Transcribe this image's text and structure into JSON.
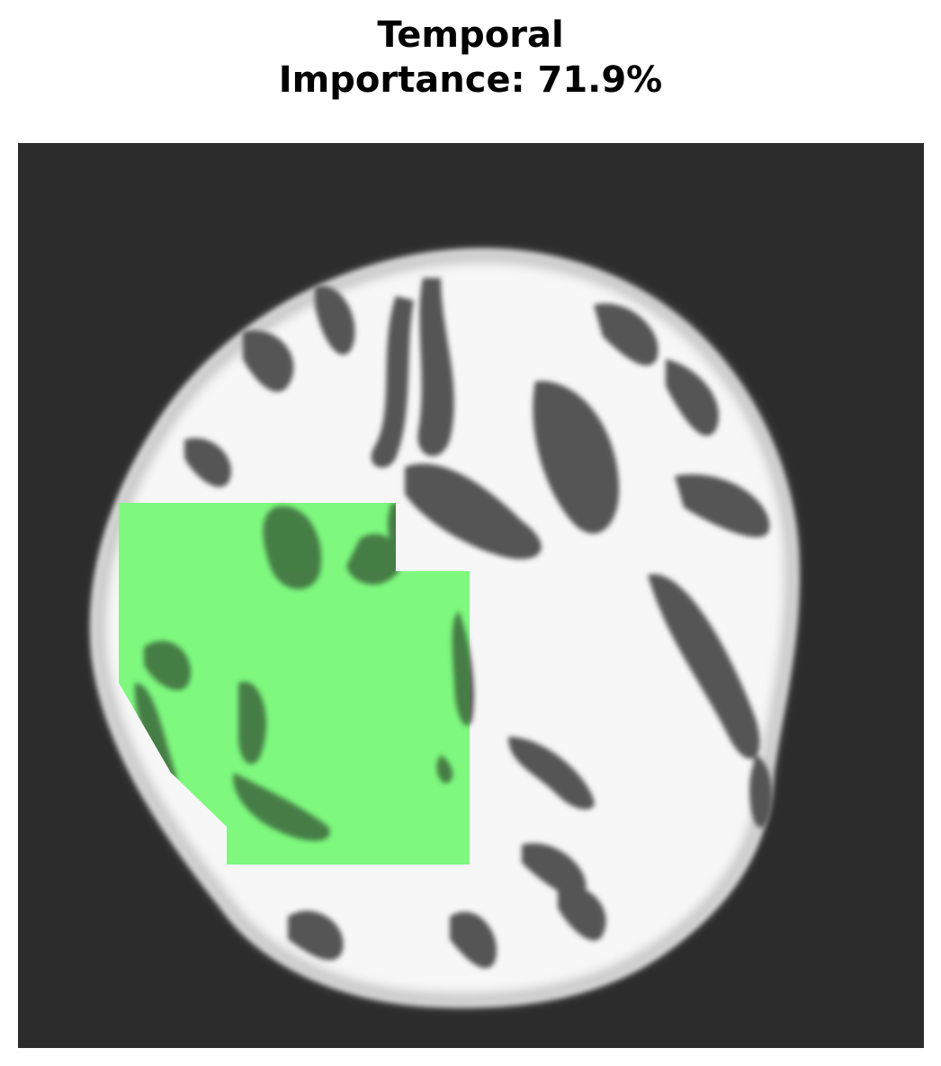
{
  "title": {
    "region": "Temporal",
    "importance_label": "Importance: 71.9%"
  },
  "figure": {
    "region": "Temporal",
    "importance_percent": 71.9,
    "background_color": "#2c2c2c",
    "overlay_color": "#7ef97e",
    "tissue_color": "#fafafa",
    "sulci_color": "#4a4a4a",
    "axes_visible": false
  }
}
